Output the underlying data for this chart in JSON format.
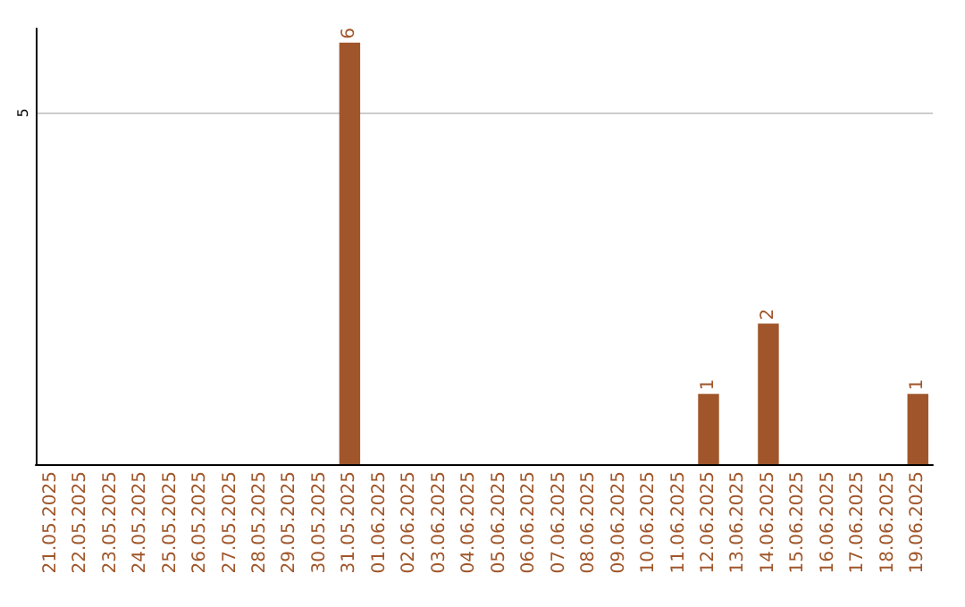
{
  "chart_data": {
    "type": "bar",
    "categories": [
      "21.05.2025",
      "22.05.2025",
      "23.05.2025",
      "24.05.2025",
      "25.05.2025",
      "26.05.2025",
      "27.05.2025",
      "28.05.2025",
      "29.05.2025",
      "30.05.2025",
      "31.05.2025",
      "01.06.2025",
      "02.06.2025",
      "03.06.2025",
      "04.06.2025",
      "05.06.2025",
      "06.06.2025",
      "07.06.2025",
      "08.06.2025",
      "09.06.2025",
      "10.06.2025",
      "11.06.2025",
      "12.06.2025",
      "13.06.2025",
      "14.06.2025",
      "15.06.2025",
      "16.06.2025",
      "17.06.2025",
      "18.06.2025",
      "19.06.2025"
    ],
    "values": [
      0,
      0,
      0,
      0,
      0,
      0,
      0,
      0,
      0,
      0,
      6,
      0,
      0,
      0,
      0,
      0,
      0,
      0,
      0,
      0,
      0,
      0,
      1,
      0,
      2,
      0,
      0,
      0,
      0,
      1
    ],
    "value_labels": [
      null,
      null,
      null,
      null,
      null,
      null,
      null,
      null,
      null,
      null,
      "6",
      null,
      null,
      null,
      null,
      null,
      null,
      null,
      null,
      null,
      null,
      null,
      "1",
      null,
      "2",
      null,
      null,
      null,
      null,
      "1"
    ],
    "color": "#a0562a",
    "ylim": [
      0,
      6.2
    ],
    "yticks": [
      5
    ],
    "grid": "y"
  }
}
